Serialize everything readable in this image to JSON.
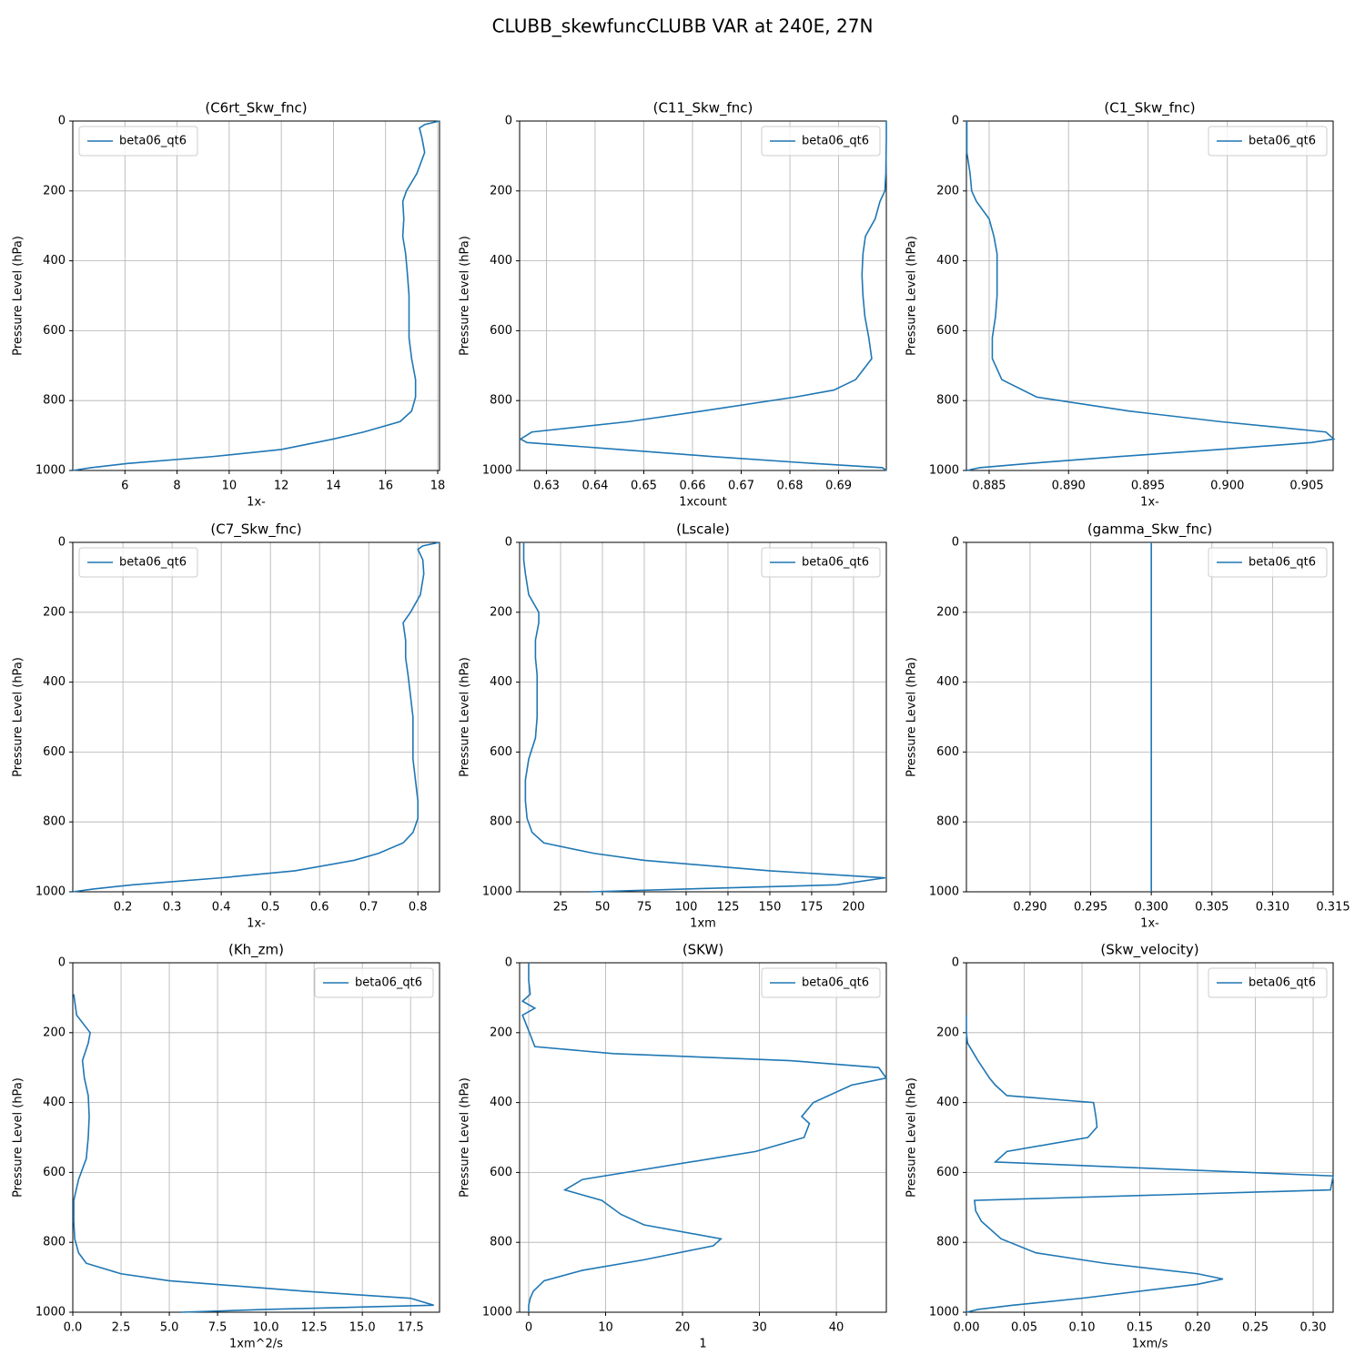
{
  "title": "CLUBB_skewfuncCLUBB VAR at 240E, 27N",
  "chart_data": [
    {
      "type": "line",
      "title": "(C6rt_Skw_fnc)",
      "xlabel": "1x-",
      "ylabel": "Pressure Level (hPa)",
      "legend": "upper left",
      "grid": true,
      "xlim": [
        4.0,
        18.07
      ],
      "xticks": [
        6,
        8,
        10,
        12,
        14,
        16,
        18
      ],
      "ylim": [
        1000,
        0
      ],
      "yticks": [
        0,
        200,
        400,
        600,
        800,
        1000
      ],
      "y": [
        0,
        10,
        20,
        50,
        90,
        150,
        200,
        230,
        280,
        330,
        380,
        440,
        500,
        560,
        620,
        680,
        740,
        790,
        830,
        860,
        890,
        910,
        940,
        960,
        980,
        992,
        1000
      ],
      "series": [
        {
          "name": "beta06_qt6",
          "color": "#1f77b4",
          "values": [
            18.07,
            17.5,
            17.3,
            17.4,
            17.5,
            17.2,
            16.8,
            16.66,
            16.7,
            16.66,
            16.77,
            16.84,
            16.9,
            16.9,
            16.9,
            17.0,
            17.15,
            17.15,
            17.0,
            16.56,
            15.16,
            14.0,
            12.0,
            9.4,
            6.1,
            4.7,
            4.0
          ]
        }
      ]
    },
    {
      "type": "line",
      "title": "(C11_Skw_fnc)",
      "xlabel": "1xcount",
      "ylabel": "Pressure Level (hPa)",
      "legend": "upper right",
      "grid": true,
      "xlim": [
        0.6245,
        0.6998
      ],
      "xticks": [
        0.63,
        0.64,
        0.65,
        0.66,
        0.67,
        0.68,
        0.69
      ],
      "ylim": [
        1000,
        0
      ],
      "yticks": [
        0,
        200,
        400,
        600,
        800,
        1000
      ],
      "y": [
        0,
        50,
        150,
        200,
        230,
        280,
        330,
        380,
        440,
        500,
        560,
        620,
        680,
        740,
        770,
        790,
        830,
        860,
        890,
        910,
        920,
        940,
        960,
        980,
        992,
        1000
      ],
      "series": [
        {
          "name": "beta06_qt6",
          "color": "#1f77b4",
          "values": [
            0.6998,
            0.6998,
            0.6997,
            0.6995,
            0.6985,
            0.6975,
            0.6955,
            0.695,
            0.6948,
            0.695,
            0.6954,
            0.6962,
            0.6968,
            0.6935,
            0.689,
            0.681,
            0.662,
            0.647,
            0.627,
            0.6247,
            0.626,
            0.645,
            0.664,
            0.685,
            0.699,
            0.6998
          ]
        }
      ]
    },
    {
      "type": "line",
      "title": "(C1_Skw_fnc)",
      "xlabel": "1x-",
      "ylabel": "Pressure Level (hPa)",
      "legend": "upper right",
      "grid": true,
      "xlim": [
        0.88357,
        0.90666
      ],
      "xticks": [
        {
          "value": 0.885,
          "label": "0.885"
        },
        {
          "value": 0.89,
          "label": "0.890"
        },
        {
          "value": 0.895,
          "label": "0.895"
        },
        {
          "value": 0.9,
          "label": "0.900"
        },
        {
          "value": 0.905,
          "label": "0.905"
        }
      ],
      "ylim": [
        1000,
        0
      ],
      "yticks": [
        0,
        200,
        400,
        600,
        800,
        1000
      ],
      "y": [
        0,
        90,
        150,
        200,
        230,
        280,
        330,
        380,
        440,
        500,
        560,
        620,
        680,
        740,
        790,
        830,
        860,
        890,
        910,
        920,
        940,
        960,
        980,
        992,
        1000
      ],
      "series": [
        {
          "name": "beta06_qt6",
          "color": "#1f77b4",
          "values": [
            0.8836,
            0.8836,
            0.8838,
            0.8839,
            0.8842,
            0.885,
            0.8853,
            0.8855,
            0.8855,
            0.8855,
            0.8854,
            0.8852,
            0.8852,
            0.8858,
            0.888,
            0.8938,
            0.8995,
            0.9062,
            0.9067,
            0.9053,
            0.8995,
            0.8932,
            0.8875,
            0.8844,
            0.8836
          ]
        }
      ]
    },
    {
      "type": "line",
      "title": "(C7_Skw_fnc)",
      "xlabel": "1x-",
      "ylabel": "Pressure Level (hPa)",
      "legend": "upper left",
      "grid": true,
      "xlim": [
        0.098,
        0.844
      ],
      "xticks": [
        0.2,
        0.3,
        0.4,
        0.5,
        0.6,
        0.7,
        0.8
      ],
      "ylim": [
        1000,
        0
      ],
      "yticks": [
        0,
        200,
        400,
        600,
        800,
        1000
      ],
      "y": [
        0,
        10,
        20,
        50,
        90,
        150,
        200,
        230,
        280,
        330,
        380,
        440,
        500,
        560,
        620,
        680,
        740,
        790,
        830,
        860,
        890,
        910,
        940,
        960,
        980,
        992,
        1000
      ],
      "series": [
        {
          "name": "beta06_qt6",
          "color": "#1f77b4",
          "values": [
            0.844,
            0.81,
            0.8,
            0.81,
            0.812,
            0.805,
            0.785,
            0.77,
            0.775,
            0.775,
            0.78,
            0.785,
            0.79,
            0.79,
            0.79,
            0.795,
            0.8,
            0.8,
            0.79,
            0.77,
            0.72,
            0.67,
            0.55,
            0.4,
            0.22,
            0.14,
            0.098
          ]
        }
      ]
    },
    {
      "type": "line",
      "title": "(Lscale)",
      "xlabel": "1xm",
      "ylabel": "Pressure Level (hPa)",
      "legend": "upper right",
      "grid": true,
      "xlim": [
        0.54,
        219.6
      ],
      "xticks": [
        25,
        50,
        75,
        100,
        125,
        150,
        175,
        200
      ],
      "ylim": [
        1000,
        0
      ],
      "yticks": [
        0,
        200,
        400,
        600,
        800,
        1000
      ],
      "y": [
        0,
        20,
        50,
        90,
        150,
        200,
        230,
        280,
        330,
        380,
        440,
        500,
        560,
        620,
        680,
        740,
        790,
        830,
        860,
        890,
        910,
        940,
        960,
        980,
        992,
        1000
      ],
      "series": [
        {
          "name": "beta06_qt6",
          "color": "#1f77b4",
          "values": [
            3,
            3,
            3,
            4,
            6,
            12,
            12,
            10,
            10,
            11,
            11,
            11,
            10,
            6,
            4,
            4,
            5,
            8,
            15,
            45,
            75,
            150,
            219,
            190,
            100,
            43
          ]
        }
      ]
    },
    {
      "type": "line",
      "title": "(gamma_Skw_fnc)",
      "xlabel": "1x-",
      "ylabel": "Pressure Level (hPa)",
      "legend": "upper right",
      "grid": true,
      "xlim": [
        0.28475,
        0.315
      ],
      "xticks": [
        {
          "value": 0.29,
          "label": "0.290"
        },
        {
          "value": 0.295,
          "label": "0.295"
        },
        {
          "value": 0.3,
          "label": "0.300"
        },
        {
          "value": 0.305,
          "label": "0.305"
        },
        {
          "value": 0.31,
          "label": "0.310"
        },
        {
          "value": 0.315,
          "label": "0.315"
        }
      ],
      "ylim": [
        1000,
        0
      ],
      "yticks": [
        0,
        200,
        400,
        600,
        800,
        1000
      ],
      "y": [
        0,
        1000
      ],
      "series": [
        {
          "name": "beta06_qt6",
          "color": "#1f77b4",
          "values": [
            0.3,
            0.3
          ]
        }
      ]
    },
    {
      "type": "line",
      "title": "(Kh_zm)",
      "xlabel": "1xm^2/s",
      "ylabel": "Pressure Level (hPa)",
      "legend": "upper right",
      "grid": true,
      "xlim": [
        0,
        19.0
      ],
      "xticks": [
        {
          "value": 0,
          "label": "0.0"
        },
        2.5,
        {
          "value": 5,
          "label": "5.0"
        },
        7.5,
        {
          "value": 10,
          "label": "10.0"
        },
        12.5,
        {
          "value": 15,
          "label": "15.0"
        },
        17.5
      ],
      "ylim": [
        1000,
        0
      ],
      "yticks": [
        0,
        200,
        400,
        600,
        800,
        1000
      ],
      "y": [
        90,
        150,
        200,
        230,
        280,
        330,
        380,
        440,
        500,
        560,
        620,
        680,
        740,
        790,
        830,
        860,
        890,
        910,
        940,
        960,
        980,
        992,
        1000
      ],
      "series": [
        {
          "name": "beta06_qt6",
          "color": "#1f77b4",
          "values": [
            0.05,
            0.2,
            0.9,
            0.8,
            0.5,
            0.6,
            0.8,
            0.85,
            0.8,
            0.7,
            0.3,
            0.05,
            0.05,
            0.1,
            0.3,
            0.7,
            2.5,
            5,
            12,
            17.5,
            18.7,
            10,
            5.6
          ]
        }
      ]
    },
    {
      "type": "line",
      "title": "(SKW)",
      "xlabel": "1",
      "ylabel": "Pressure Level (hPa)",
      "legend": "upper right",
      "grid": true,
      "xlim": [
        -1.18,
        46.5
      ],
      "xticks": [
        0,
        10,
        20,
        30,
        40
      ],
      "ylim": [
        1000,
        0
      ],
      "yticks": [
        0,
        200,
        400,
        600,
        800,
        1000
      ],
      "y": [
        0,
        50,
        90,
        110,
        130,
        150,
        200,
        240,
        260,
        280,
        300,
        330,
        350,
        400,
        440,
        460,
        500,
        540,
        620,
        650,
        680,
        720,
        750,
        790,
        810,
        850,
        880,
        910,
        940,
        960,
        980,
        1000
      ],
      "series": [
        {
          "name": "beta06_qt6",
          "color": "#1f77b4",
          "values": [
            0,
            0,
            0.2,
            -0.8,
            0.8,
            -0.8,
            0.1,
            0.8,
            11,
            34,
            45.5,
            46.5,
            42,
            37,
            35.5,
            36.5,
            35.8,
            29.5,
            7,
            4.7,
            9.5,
            12,
            15,
            25,
            24,
            15,
            7,
            2,
            0.6,
            0.2,
            0,
            0
          ]
        }
      ]
    },
    {
      "type": "line",
      "title": "(Skw_velocity)",
      "xlabel": "1xm/s",
      "ylabel": "Pressure Level (hPa)",
      "legend": "upper right",
      "grid": true,
      "xlim": [
        0,
        0.3173
      ],
      "xticks": [
        {
          "value": 0,
          "label": "0.00"
        },
        0.05,
        {
          "value": 0.1,
          "label": "0.10"
        },
        0.15,
        {
          "value": 0.2,
          "label": "0.20"
        },
        0.25,
        {
          "value": 0.3,
          "label": "0.30"
        }
      ],
      "ylim": [
        1000,
        0
      ],
      "yticks": [
        0,
        200,
        400,
        600,
        800,
        1000
      ],
      "y": [
        150,
        200,
        230,
        280,
        330,
        350,
        380,
        400,
        440,
        470,
        500,
        540,
        570,
        610,
        650,
        680,
        710,
        740,
        790,
        830,
        860,
        890,
        905,
        920,
        960,
        980,
        992,
        1000
      ],
      "series": [
        {
          "name": "beta06_qt6",
          "color": "#1f77b4",
          "values": [
            0,
            0,
            0.001,
            0.01,
            0.02,
            0.025,
            0.035,
            0.11,
            0.112,
            0.113,
            0.105,
            0.035,
            0.025,
            0.3173,
            0.315,
            0.007,
            0.008,
            0.013,
            0.03,
            0.06,
            0.12,
            0.2,
            0.222,
            0.2,
            0.1,
            0.04,
            0.01,
            0
          ]
        }
      ]
    }
  ]
}
